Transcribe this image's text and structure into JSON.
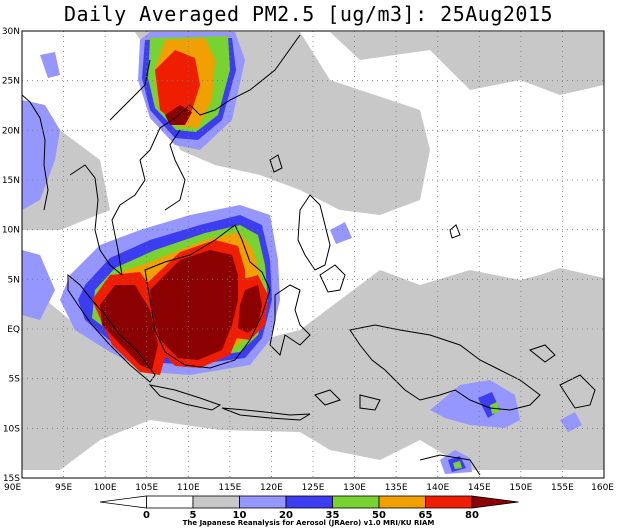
{
  "title": "Daily Averaged PM2.5 [ug/m3]: 25Aug2015",
  "credit": "The Japanese Reanalysis for Aerosol (JRAero) v1.0 MRI/KU RIAM",
  "map": {
    "lon_range": [
      90,
      160
    ],
    "lat_range": [
      -15,
      30
    ],
    "lat_labels": [
      {
        "lat": 30,
        "text": "30N"
      },
      {
        "lat": 25,
        "text": "25N"
      },
      {
        "lat": 20,
        "text": "20N"
      },
      {
        "lat": 15,
        "text": "15N"
      },
      {
        "lat": 10,
        "text": "10N"
      },
      {
        "lat": 5,
        "text": "5N"
      },
      {
        "lat": 0,
        "text": "EQ"
      },
      {
        "lat": -5,
        "text": "5S"
      },
      {
        "lat": -10,
        "text": "10S"
      },
      {
        "lat": -15,
        "text": "15S"
      }
    ],
    "lon_labels": [
      {
        "lon": 90,
        "text": "90E"
      },
      {
        "lon": 95,
        "text": "95E"
      },
      {
        "lon": 100,
        "text": "100E"
      },
      {
        "lon": 105,
        "text": "105E"
      },
      {
        "lon": 110,
        "text": "110E"
      },
      {
        "lon": 115,
        "text": "115E"
      },
      {
        "lon": 120,
        "text": "120E"
      },
      {
        "lon": 125,
        "text": "125E"
      },
      {
        "lon": 130,
        "text": "130E"
      },
      {
        "lon": 135,
        "text": "135E"
      },
      {
        "lon": 140,
        "text": "140E"
      },
      {
        "lon": 145,
        "text": "145E"
      },
      {
        "lon": 150,
        "text": "150E"
      },
      {
        "lon": 155,
        "text": "155E"
      },
      {
        "lon": 160,
        "text": "160E"
      }
    ],
    "gridlines": "dotted"
  },
  "colorbar": {
    "levels": [
      "0",
      "5",
      "10",
      "20",
      "35",
      "50",
      "65",
      "80"
    ],
    "colors": [
      "#ffffff",
      "#ffffff",
      "#c8c8c8",
      "#9696ff",
      "#3c3cf0",
      "#78d232",
      "#f0a000",
      "#f01e00",
      "#8b0000"
    ]
  },
  "colors": {
    "c10": "#c8c8c8",
    "c20": "#9696ff",
    "c35": "#3c3cf0",
    "c50": "#78d232",
    "c65": "#f0a000",
    "c80": "#f01e00",
    "c80plus": "#8b0000"
  }
}
